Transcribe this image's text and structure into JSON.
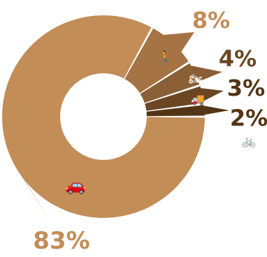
{
  "chart_data": {
    "type": "pie",
    "variant": "donut",
    "categories": [
      "Car",
      "Pedestrian with dog",
      "Motorcycle",
      "Truck",
      "Bicycle"
    ],
    "values": [
      83,
      8,
      4,
      3,
      2
    ],
    "labels": [
      "83%",
      "8%",
      "4%",
      "3%",
      "2%"
    ],
    "icons": [
      "car-icon",
      "walker-with-dog-icon",
      "motorcycle-icon",
      "truck-icon",
      "bicycle-icon"
    ],
    "colors": [
      "#C28D57",
      "#A57344",
      "#8A5F35",
      "#6B4623",
      "#533414"
    ],
    "label_color": "#C28D57",
    "title": "",
    "legend": "none"
  }
}
